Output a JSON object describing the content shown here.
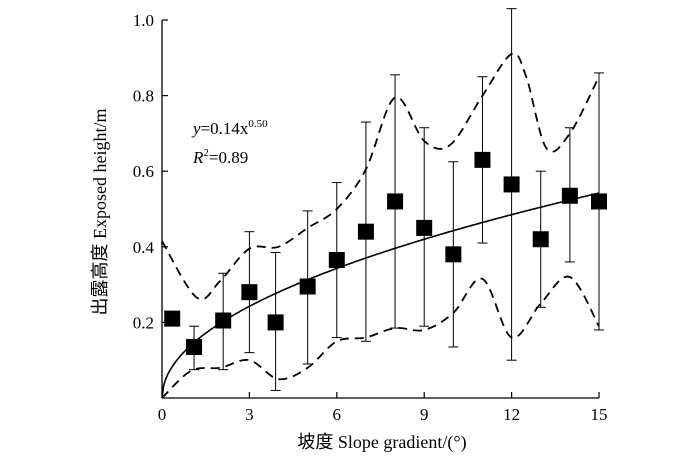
{
  "chart_data": {
    "type": "scatter",
    "xlabel": "坡度 Slope gradient/(°)",
    "ylabel": "出露高度 Exposed height/m",
    "xlim": [
      0,
      15
    ],
    "ylim": [
      0,
      1.0
    ],
    "xticks": [
      {
        "value": 0,
        "label": "0"
      },
      {
        "value": 3,
        "label": "3"
      },
      {
        "value": 6,
        "label": "6"
      },
      {
        "value": 9,
        "label": "9"
      },
      {
        "value": 12,
        "label": "12"
      },
      {
        "value": 15,
        "label": "15"
      }
    ],
    "yticks": [
      {
        "value": 0.2,
        "label": "0.2"
      },
      {
        "value": 0.4,
        "label": "0.4"
      },
      {
        "value": 0.6,
        "label": "0.6"
      },
      {
        "value": 0.8,
        "label": "0.8"
      },
      {
        "value": 1.0,
        "label": "1.0"
      }
    ],
    "points": [
      {
        "x": 0.35,
        "y": 0.21,
        "low": null,
        "high": null
      },
      {
        "x": 1.1,
        "y": 0.135,
        "low": 0.075,
        "high": 0.19
      },
      {
        "x": 2.1,
        "y": 0.205,
        "low": 0.075,
        "high": 0.33
      },
      {
        "x": 3.0,
        "y": 0.28,
        "low": 0.12,
        "high": 0.44
      },
      {
        "x": 3.9,
        "y": 0.2,
        "low": 0.02,
        "high": 0.385
      },
      {
        "x": 5.0,
        "y": 0.295,
        "low": 0.09,
        "high": 0.495
      },
      {
        "x": 6.0,
        "y": 0.365,
        "low": 0.16,
        "high": 0.57
      },
      {
        "x": 7.0,
        "y": 0.44,
        "low": 0.15,
        "high": 0.73
      },
      {
        "x": 8.0,
        "y": 0.52,
        "low": 0.185,
        "high": 0.855
      },
      {
        "x": 9.0,
        "y": 0.45,
        "low": 0.19,
        "high": 0.715
      },
      {
        "x": 10.0,
        "y": 0.38,
        "low": 0.135,
        "high": 0.625
      },
      {
        "x": 11.0,
        "y": 0.63,
        "low": 0.41,
        "high": 0.85
      },
      {
        "x": 12.0,
        "y": 0.565,
        "low": 0.1,
        "high": 1.03
      },
      {
        "x": 13.0,
        "y": 0.42,
        "low": 0.24,
        "high": 0.6
      },
      {
        "x": 14.0,
        "y": 0.535,
        "low": 0.36,
        "high": 0.715
      },
      {
        "x": 15.0,
        "y": 0.52,
        "low": 0.18,
        "high": 0.86
      }
    ],
    "fit": {
      "a": 0.14,
      "b": 0.5
    },
    "upper_band": [
      [
        0,
        0.415
      ],
      [
        1.2,
        0.265
      ],
      [
        2,
        0.31
      ],
      [
        3,
        0.395
      ],
      [
        4,
        0.4
      ],
      [
        5,
        0.45
      ],
      [
        6,
        0.5
      ],
      [
        7,
        0.605
      ],
      [
        8,
        0.795
      ],
      [
        9,
        0.68
      ],
      [
        9.9,
        0.67
      ],
      [
        11,
        0.8
      ],
      [
        12,
        0.91
      ],
      [
        12.5,
        0.85
      ],
      [
        13.2,
        0.66
      ],
      [
        14,
        0.7
      ],
      [
        15,
        0.85
      ]
    ],
    "lower_band": [
      [
        0,
        0.0
      ],
      [
        1,
        0.072
      ],
      [
        2,
        0.08
      ],
      [
        3,
        0.1
      ],
      [
        4,
        0.05
      ],
      [
        5,
        0.08
      ],
      [
        6,
        0.15
      ],
      [
        7,
        0.16
      ],
      [
        8,
        0.185
      ],
      [
        9,
        0.18
      ],
      [
        10,
        0.225
      ],
      [
        11,
        0.315
      ],
      [
        12,
        0.16
      ],
      [
        13,
        0.25
      ],
      [
        14,
        0.32
      ],
      [
        15,
        0.19
      ]
    ],
    "annotation": {
      "y_label": "y",
      "equation_rest": "=0.14x",
      "exponent": "0.50",
      "r_label": "R",
      "r_power": "2",
      "r_value": "=0.89"
    }
  }
}
